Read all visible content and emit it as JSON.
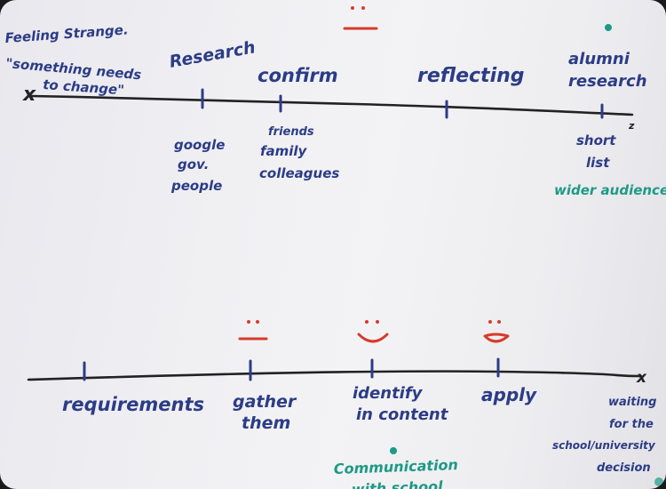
{
  "image": {
    "top_timeline": {
      "start_note": [
        "Feeling Strange.",
        "\"something needs",
        "to change\""
      ],
      "start_marker": "x",
      "end_marker": "z",
      "stages": [
        {
          "label": "Research",
          "notes": [
            "google",
            "gov.",
            "people"
          ]
        },
        {
          "label": "confirm",
          "notes": [
            "friends",
            "family",
            "colleagues"
          ]
        },
        {
          "label": "reflecting",
          "notes": []
        },
        {
          "label": [
            "alumni",
            "research"
          ],
          "notes": [
            "short",
            "list"
          ]
        }
      ],
      "extra_note": "wider audience"
    },
    "bottom_timeline": {
      "end_marker": "x",
      "stages": [
        {
          "label": "requirements"
        },
        {
          "label": [
            "gather",
            "them"
          ]
        },
        {
          "label": [
            "identify",
            "in content"
          ]
        },
        {
          "label": "apply"
        }
      ],
      "end_note": [
        "waiting",
        "for the",
        "school/university",
        "decision"
      ],
      "extra_note": [
        "Communication",
        "with school"
      ]
    },
    "colors": {
      "paper": "#f1f1f4",
      "marker_blue": "#2c3c86",
      "marker_red": "#d63b2a",
      "marker_green": "#1d9a86",
      "marker_black": "#222222"
    }
  }
}
